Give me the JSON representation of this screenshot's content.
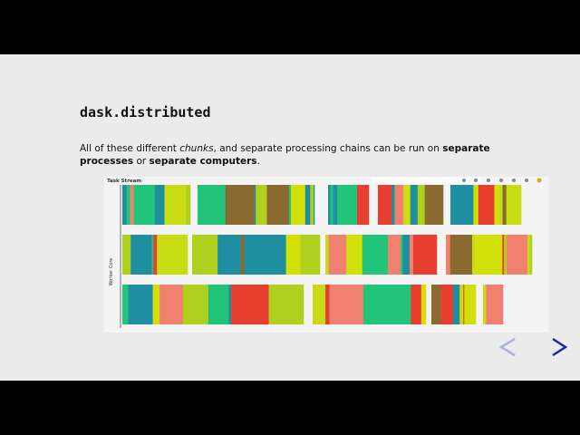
{
  "slide": {
    "title": "dask.distributed",
    "paragraph": [
      "All of these different ",
      "chunks",
      ", and separate processing chains can be run on ",
      "separate processes",
      " or ",
      "separate computers",
      "."
    ],
    "chart_title": "Task Stream",
    "y_axis_label": "Worker Core"
  }
}
